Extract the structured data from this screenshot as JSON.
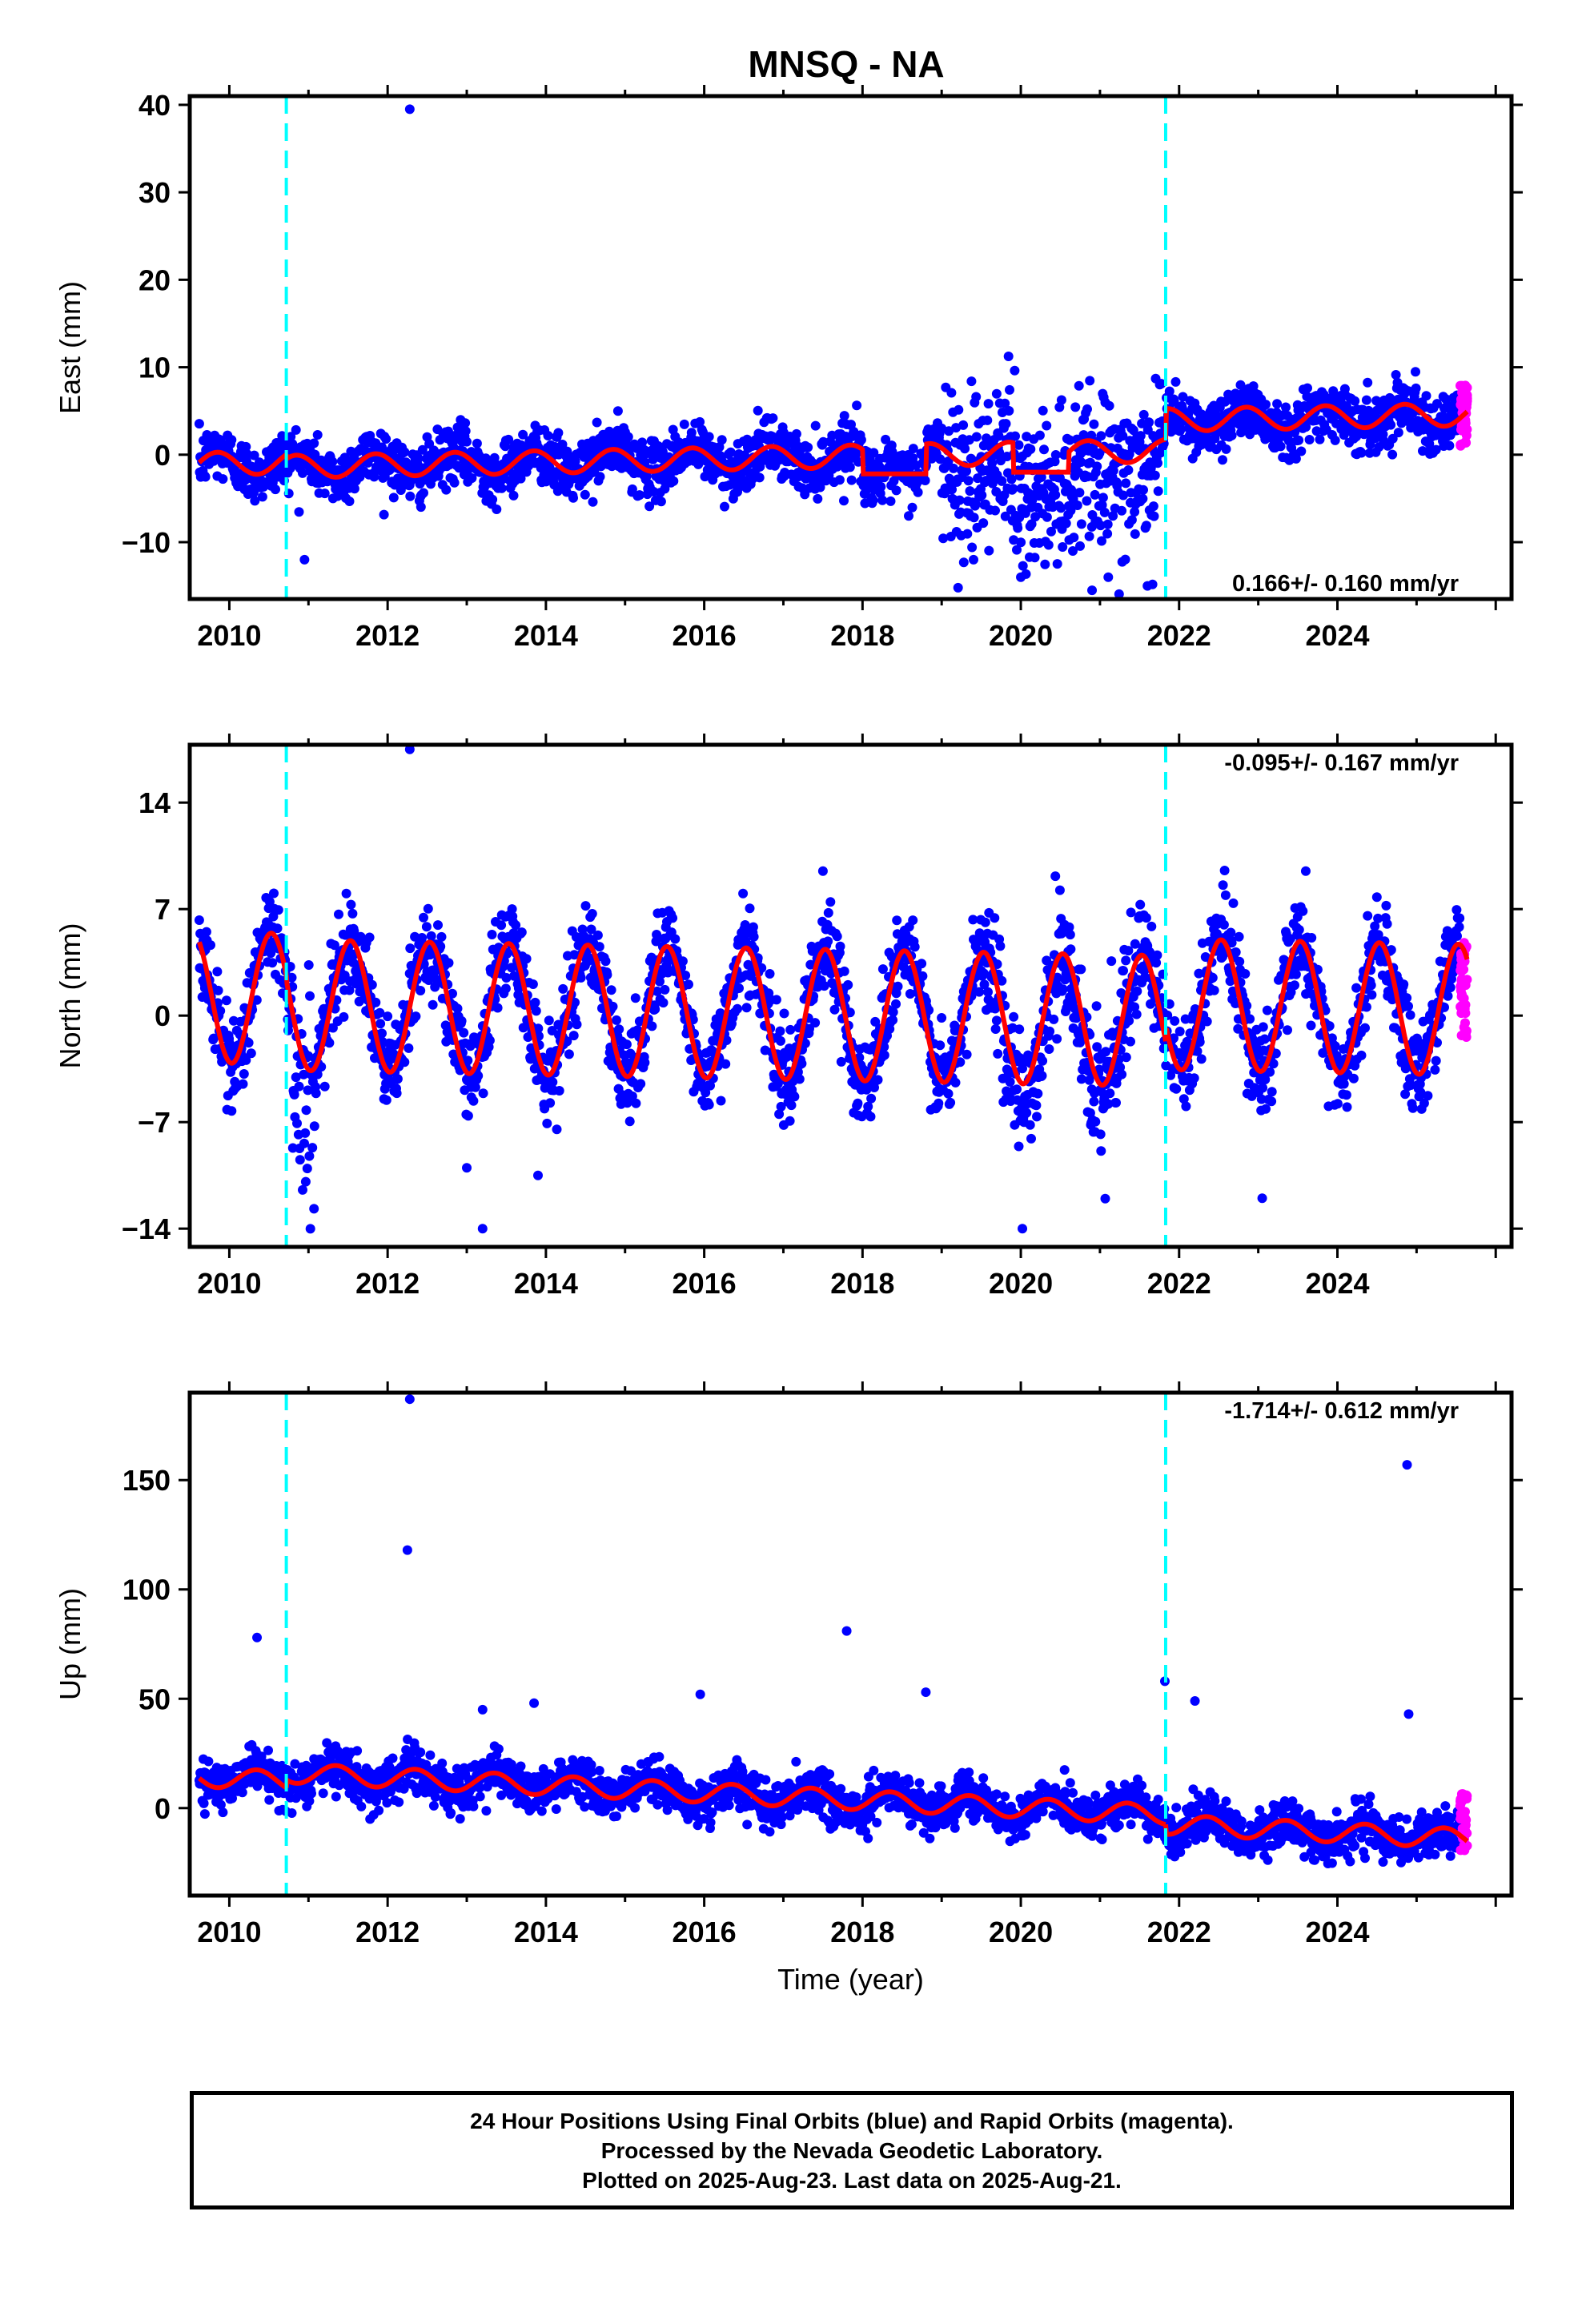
{
  "title": "MNSQ - NA",
  "footer": {
    "line1": "24 Hour Positions Using Final Orbits (blue) and Rapid Orbits (magenta).",
    "line2": "Processed by the Nevada Geodetic Laboratory.",
    "line3": "Plotted on 2025-Aug-23. Last data on 2025-Aug-21."
  },
  "colors": {
    "final_orbits": "#0000ff",
    "rapid_orbits": "#ff00ff",
    "model_fit": "#ff0000",
    "equipment_change": "#00ffff",
    "frame": "#000000"
  },
  "chart_data": [
    {
      "type": "scatter",
      "title": "MNSQ - NA",
      "ylabel": "East (mm)",
      "xlabel": "",
      "xlim": [
        2009.5,
        2026.2
      ],
      "ylim": [
        -16.5,
        41
      ],
      "x_ticks": [
        2010,
        2012,
        2014,
        2016,
        2018,
        2020,
        2022,
        2024
      ],
      "y_ticks": [
        -10,
        0,
        10,
        20,
        30,
        40
      ],
      "y_tick_labels": [
        "−10",
        "0",
        "10",
        "20",
        "30",
        "40"
      ],
      "rate_annotation": "0.166+/- 0.160 mm/yr",
      "rate_position": "bottom-right",
      "equipment_changes": [
        2010.72,
        2021.83
      ],
      "model": {
        "segments": [
          [
            2009.62,
            2010.72,
            0.0
          ],
          [
            2010.72,
            2021.83,
            -0.5
          ],
          [
            2021.83,
            2025.64,
            3.0
          ]
        ],
        "slope": 0.166,
        "ref_year": 2016,
        "annual_amp": 1.3,
        "annual_phase": 0.6,
        "noise": 1.6,
        "overrides": [
          [
            2018.0,
            2018.8,
            -2.2
          ],
          [
            2019.9,
            2020.6,
            -2.0
          ]
        ]
      },
      "noisy_periods": [
        [
          2019.0,
          2021.8,
          4.5,
          -4.0
        ]
      ],
      "outliers": [
        [
          2012.28,
          39.5
        ],
        [
          2020.9,
          -15.5
        ],
        [
          2021.6,
          -15.0
        ],
        [
          2010.95,
          -12.0
        ],
        [
          2020.0,
          -14.0
        ]
      ],
      "rapid_points": {
        "x_range": [
          2025.55,
          2025.64
        ],
        "y_range": [
          1.0,
          8.5
        ]
      }
    },
    {
      "type": "scatter",
      "ylabel": "North (mm)",
      "xlabel": "",
      "xlim": [
        2009.5,
        2026.2
      ],
      "ylim": [
        -15.2,
        17.8
      ],
      "x_ticks": [
        2010,
        2012,
        2014,
        2016,
        2018,
        2020,
        2022,
        2024
      ],
      "y_ticks": [
        -14,
        -7,
        0,
        7,
        14
      ],
      "y_tick_labels": [
        "−14",
        "−7",
        "0",
        "7",
        "14"
      ],
      "rate_annotation": "-0.095+/- 0.167 mm/yr",
      "rate_position": "top-right",
      "equipment_changes": [
        2010.72,
        2021.83
      ],
      "model": {
        "segments": [
          [
            2009.62,
            2010.72,
            0.6
          ],
          [
            2010.72,
            2021.83,
            0.2
          ],
          [
            2021.83,
            2025.64,
            1.3
          ]
        ],
        "slope": -0.095,
        "ref_year": 2016,
        "annual_amp": 4.3,
        "annual_phase": 0.28,
        "noise": 1.5,
        "overrides": []
      },
      "noisy_periods": [
        [
          2010.8,
          2011.1,
          3.0,
          -5.0
        ],
        [
          2019.5,
          2021.6,
          2.0,
          -1.5
        ]
      ],
      "outliers": [
        [
          2012.28,
          17.5
        ],
        [
          2013.2,
          -14.0
        ],
        [
          2020.02,
          -14.0
        ],
        [
          2013.0,
          -10.0
        ],
        [
          2013.9,
          -10.5
        ],
        [
          2017.5,
          9.5
        ],
        [
          2023.6,
          9.5
        ],
        [
          2023.05,
          -12.0
        ]
      ],
      "rapid_points": {
        "x_range": [
          2025.55,
          2025.64
        ],
        "y_range": [
          -1.5,
          5.0
        ]
      }
    },
    {
      "type": "scatter",
      "ylabel": "Up (mm)",
      "xlabel": "Time (year)",
      "xlim": [
        2009.5,
        2026.2
      ],
      "ylim": [
        -40,
        190
      ],
      "x_ticks": [
        2010,
        2012,
        2014,
        2016,
        2018,
        2020,
        2022,
        2024
      ],
      "y_ticks": [
        0,
        50,
        100,
        150
      ],
      "y_tick_labels": [
        "0",
        "50",
        "100",
        "150"
      ],
      "rate_annotation": "-1.714+/- 0.612 mm/yr",
      "rate_position": "top-right",
      "equipment_changes": [
        2010.72,
        2021.83
      ],
      "model": {
        "segments": [
          [
            2009.62,
            2010.72,
            3.3
          ],
          [
            2010.72,
            2021.83,
            7.0
          ],
          [
            2021.83,
            2025.64,
            2.5
          ]
        ],
        "slope": -1.714,
        "ref_year": 2016,
        "annual_amp": 4.5,
        "annual_phase": 0.1,
        "noise": 5.0,
        "overrides": []
      },
      "noisy_periods": [],
      "outliers": [
        [
          2012.28,
          187
        ],
        [
          2012.25,
          118
        ],
        [
          2010.35,
          78
        ],
        [
          2017.8,
          81
        ],
        [
          2024.88,
          157
        ],
        [
          2018.8,
          53
        ],
        [
          2015.95,
          52
        ],
        [
          2021.82,
          58
        ],
        [
          2022.2,
          49
        ],
        [
          2013.85,
          48
        ],
        [
          2013.2,
          45
        ],
        [
          2024.9,
          43
        ]
      ],
      "rapid_points": {
        "x_range": [
          2025.55,
          2025.64
        ],
        "y_range": [
          -20.0,
          7.0
        ]
      }
    }
  ]
}
